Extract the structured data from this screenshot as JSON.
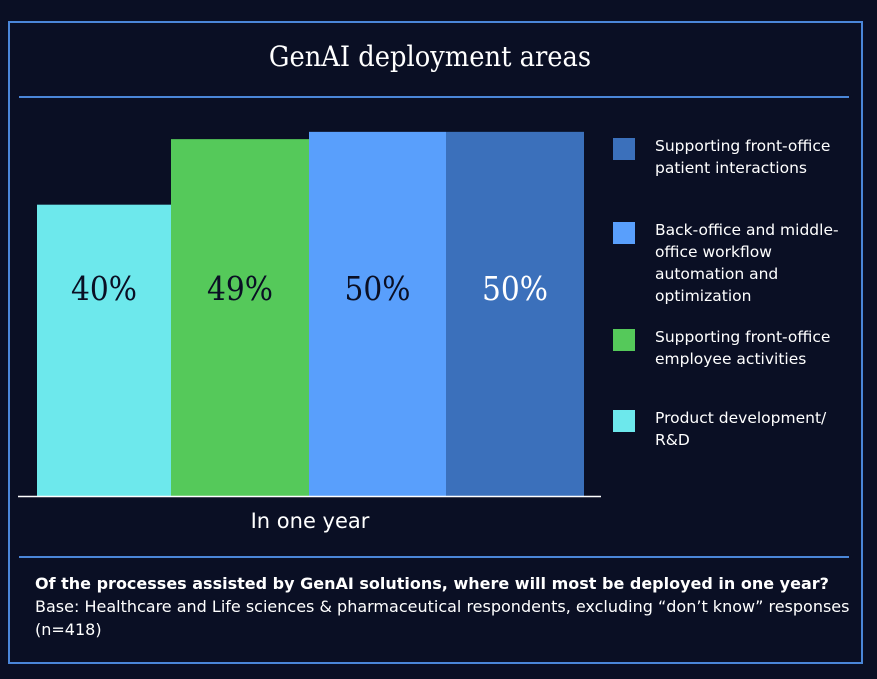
{
  "chart_data": {
    "type": "bar",
    "title": "GenAI deployment areas",
    "xlabel": "In one year",
    "ylabel": "",
    "ylim": [
      0,
      53
    ],
    "grid": false,
    "legend_position": "right",
    "categories": [
      "In one year"
    ],
    "series": [
      {
        "name": "Product development/ R&D",
        "values": [
          40
        ],
        "label": "40%",
        "color": "#6de8ec",
        "label_color": "#0a0f24"
      },
      {
        "name": "Supporting front-office employee activities",
        "values": [
          49
        ],
        "label": "49%",
        "color": "#55c95a",
        "label_color": "#0a0f24"
      },
      {
        "name": "Back-office and middle-office workflow automation and optimization",
        "values": [
          50
        ],
        "label": "50%",
        "color": "#599ffc",
        "label_color": "#0a0f24"
      },
      {
        "name": "Supporting front-office patient interactions",
        "values": [
          50
        ],
        "label": "50%",
        "color": "#3b70bb",
        "label_color": "#ffffff"
      }
    ]
  },
  "legend": [
    {
      "label": "Supporting front-office patient interactions",
      "color": "#3b70bb"
    },
    {
      "label": "Back-office and middle-office workflow automation and optimization",
      "color": "#599ffc"
    },
    {
      "label": "Supporting front-office employee activities",
      "color": "#55c95a"
    },
    {
      "label": "Product development/ R&D",
      "color": "#6de8ec"
    }
  ],
  "footer": {
    "question": "Of the processes assisted by GenAI solutions, where will most be deployed in one year?",
    "base": "Base: Healthcare and Life sciences & pharmaceutical respondents, excluding “don’t know” responses (n=418)"
  },
  "colors": {
    "background": "#0a0f24",
    "accent": "#4a86d8"
  }
}
